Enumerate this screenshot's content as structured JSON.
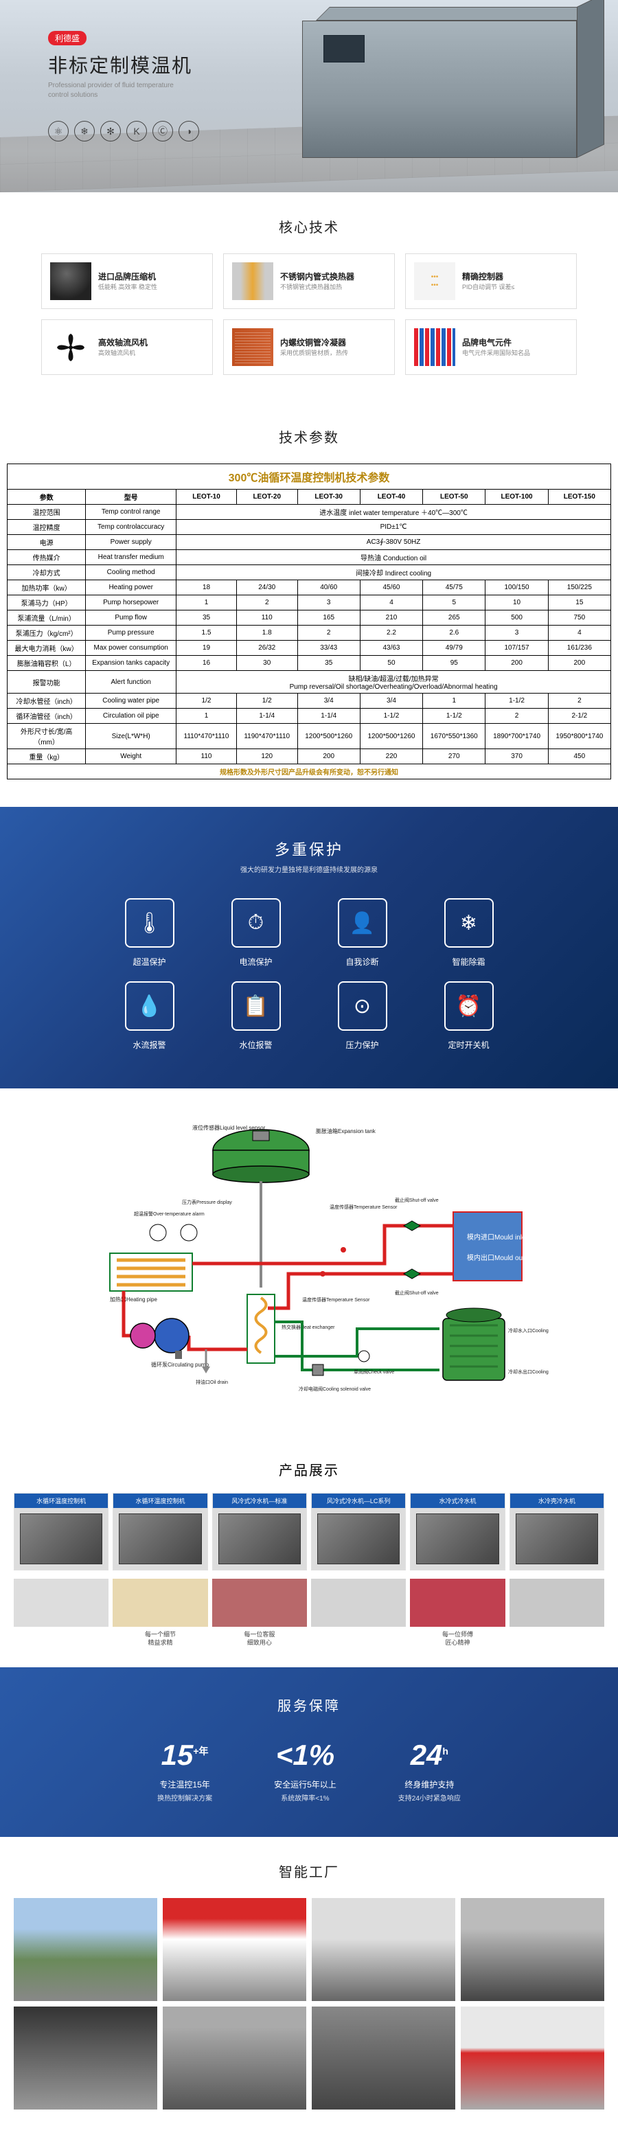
{
  "hero": {
    "badge": "利德盛",
    "title": "非标定制模温机",
    "subtitle": "Professional provider of fluid temperature control solutions",
    "icons": [
      "⚛",
      "❄",
      "✻",
      "K",
      "Ⓒ",
      "◑"
    ]
  },
  "core_tech": {
    "title": "核心技术",
    "items": [
      {
        "name": "进口品牌压缩机",
        "desc": "低能耗 高效率 稳定性"
      },
      {
        "name": "不锈钢内管式换热器",
        "desc": "不锈钢管式换热器加热"
      },
      {
        "name": "精确控制器",
        "desc": "PID自动调节  误差≤"
      },
      {
        "name": "高效轴流风机",
        "desc": "高效轴流风机"
      },
      {
        "name": "内螺纹铜管冷凝器",
        "desc": "采用优质铜管材质，热传"
      },
      {
        "name": "品牌电气元件",
        "desc": "电气元件采用国际知名品"
      }
    ]
  },
  "spec": {
    "heading": "技术参数",
    "title": "300℃油循环温度控制机技术参数",
    "header_left": "参数",
    "header_model": "型号",
    "models": [
      "LEOT-10",
      "LEOT-20",
      "LEOT-30",
      "LEOT-40",
      "LEOT-50",
      "LEOT-100",
      "LEOT-150"
    ],
    "rows": [
      {
        "zh": "温控范围",
        "en": "Temp control range",
        "span": "进水温度 inlet water temperature ＋40℃—300℃"
      },
      {
        "zh": "温控精度",
        "en": "Temp controlaccuracy",
        "span": "PID±1℃"
      },
      {
        "zh": "电源",
        "en": "Power supply",
        "span": "AC3∮-380V 50HZ"
      },
      {
        "zh": "传热媒介",
        "en": "Heat transfer medium",
        "span": "导热油 Conduction oil"
      },
      {
        "zh": "冷却方式",
        "en": "Cooling method",
        "span": "间接冷却 Indirect cooling"
      },
      {
        "zh": "加热功率（kw）",
        "en": "Heating power",
        "vals": [
          "18",
          "24/30",
          "40/60",
          "45/60",
          "45/75",
          "100/150",
          "150/225"
        ]
      },
      {
        "zh": "泵浦马力（HP）",
        "en": "Pump horsepower",
        "vals": [
          "1",
          "2",
          "3",
          "4",
          "5",
          "10",
          "15"
        ]
      },
      {
        "zh": "泵浦流量（L/min）",
        "en": "Pump flow",
        "vals": [
          "35",
          "110",
          "165",
          "210",
          "265",
          "500",
          "750"
        ]
      },
      {
        "zh": "泵浦压力（kg/cm²）",
        "en": "Pump pressure",
        "vals": [
          "1.5",
          "1.8",
          "2",
          "2.2",
          "2.6",
          "3",
          "4"
        ]
      },
      {
        "zh": "最大电力消耗（kw）",
        "en": "Max power consumption",
        "vals": [
          "19",
          "26/32",
          "33/43",
          "43/63",
          "49/79",
          "107/157",
          "161/236"
        ]
      },
      {
        "zh": "膨胀油箱容积（L）",
        "en": "Expansion tanks capacity",
        "vals": [
          "16",
          "30",
          "35",
          "50",
          "95",
          "200",
          "200"
        ]
      },
      {
        "zh": "报警功能",
        "en": "Alert function",
        "span": "缺相/缺油/超温/过载/加热异常\nPump reversal/Oil shortage/Overheating/Overload/Abnormal heating"
      },
      {
        "zh": "冷却水管径（inch）",
        "en": "Cooling water pipe",
        "vals": [
          "1/2",
          "1/2",
          "3/4",
          "3/4",
          "1",
          "1-1/2",
          "2"
        ]
      },
      {
        "zh": "循环油管径（inch）",
        "en": "Circulation oil pipe",
        "vals": [
          "1",
          "1-1/4",
          "1-1/4",
          "1-1/2",
          "1-1/2",
          "2",
          "2-1/2"
        ]
      },
      {
        "zh": "外形尺寸长/宽/高（mm）",
        "en": "Size(L*W*H)",
        "vals": [
          "1110*470*1110",
          "1190*470*1110",
          "1200*500*1260",
          "1200*500*1260",
          "1670*550*1360",
          "1890*700*1740",
          "1950*800*1740"
        ]
      },
      {
        "zh": "重量（kg）",
        "en": "Weight",
        "vals": [
          "110",
          "120",
          "200",
          "220",
          "270",
          "370",
          "450"
        ]
      }
    ],
    "footer": "规格形数及外形尺寸因产品升级会有所变动，恕不另行通知"
  },
  "protection": {
    "title": "多重保护",
    "subtitle": "强大的研发力量独将是利德盛持续发展的源泉",
    "items": [
      {
        "icon": "🌡",
        "label": "超温保护"
      },
      {
        "icon": "⏱",
        "label": "电流保护"
      },
      {
        "icon": "👤",
        "label": "自我诊断"
      },
      {
        "icon": "❄",
        "label": "智能除霜"
      },
      {
        "icon": "💧",
        "label": "水流报警"
      },
      {
        "icon": "📋",
        "label": "水位报警"
      },
      {
        "icon": "⊙",
        "label": "压力保护"
      },
      {
        "icon": "⏰",
        "label": "定时开关机"
      }
    ]
  },
  "diagram": {
    "labels": {
      "level_sensor": "液位传感器\nLiquid level sensor",
      "expansion_tank": "膨胀油箱\nExpansion tank",
      "heater": "加热器\nHeating pipe",
      "temp_sensor1": "温度传感器\nTemperature Sensor",
      "temp_sensor2": "温度传感器\nTemperature Sensor",
      "shutoff1": "截止阀\nShut-off valve",
      "shutoff2": "截止阀\nShut-off valve",
      "mould_in": "模内进口\nMould inlet",
      "mould_out": "模内出口\nMould outlet",
      "over_temp": "超温报警\nOver-temperature alarm",
      "pressure": "压力表\nPressure display",
      "pump": "循环泵\nCirculating pump",
      "drain": "排油口\nOil drain",
      "exchanger": "热交换器\nHeat exchanger",
      "check_valve": "单向阀\nCheck valve",
      "cooling_valve": "冷却电磁阀\nCooling solenoid valve",
      "cooling_in": "冷却水入口\nCooling water inlet",
      "cooling_out": "冷却水出口\nCooling water outlet"
    },
    "colors": {
      "tank_green": "#3a9840",
      "pipe_red": "#d82020",
      "pipe_green": "#108030",
      "pipe_grey": "#888888",
      "heater_orange": "#e8a030",
      "pump_blue": "#3060c0",
      "pump_pink": "#d040a0",
      "mould_box": "#4a80c8",
      "label_text": "#222222"
    }
  },
  "products": {
    "title": "产品展示",
    "cards": [
      "水循环温度控制机",
      "水循环温度控制机",
      "风冷式冷水机—标准",
      "风冷式冷水机—LC系列",
      "水冷式冷水机",
      "水冷壳冷水机"
    ],
    "row2": [
      {
        "label": ""
      },
      {
        "label": "每一个细节\n精益求精"
      },
      {
        "label": "每一位客服\n细致用心"
      },
      {
        "label": ""
      },
      {
        "label": "每一位师傅\n匠心精神"
      },
      {
        "label": ""
      }
    ]
  },
  "service": {
    "title": "服务保障",
    "items": [
      {
        "num": "15",
        "sup": "+年",
        "label": "专注温控15年",
        "desc": "换热控制解决方案"
      },
      {
        "num": "<1%",
        "sup": "",
        "label": "安全运行5年以上",
        "desc": "系统故障率<1%"
      },
      {
        "num": "24",
        "sup": "h",
        "label": "终身维护支持",
        "desc": "支持24小时紧急响应"
      }
    ]
  },
  "factory": {
    "title": "智能工厂"
  }
}
